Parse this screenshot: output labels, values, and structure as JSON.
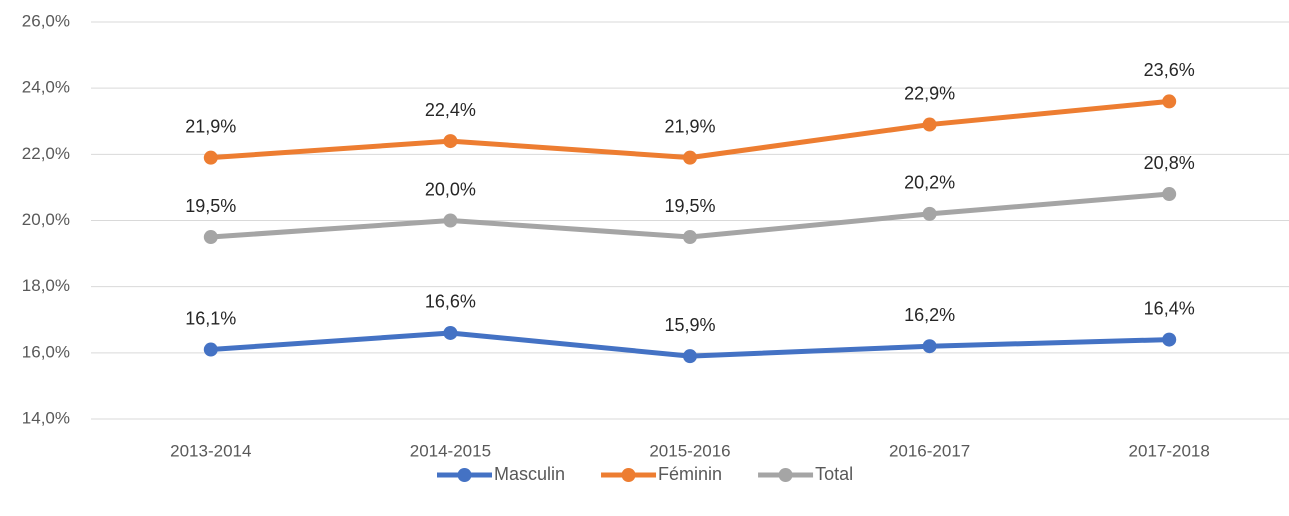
{
  "chart_data": {
    "type": "line",
    "categories": [
      "2013-2014",
      "2014-2015",
      "2015-2016",
      "2016-2017",
      "2017-2018"
    ],
    "series": [
      {
        "name": "Masculin",
        "color": "#4472c4",
        "values": [
          16.1,
          16.6,
          15.9,
          16.2,
          16.4
        ],
        "value_labels": [
          "16,1%",
          "16,6%",
          "15,9%",
          "16,2%",
          "16,4%"
        ]
      },
      {
        "name": "Féminin",
        "color": "#ed7d31",
        "values": [
          21.9,
          22.4,
          21.9,
          22.9,
          23.6
        ],
        "value_labels": [
          "21,9%",
          "22,4%",
          "21,9%",
          "22,9%",
          "23,6%"
        ]
      },
      {
        "name": "Total",
        "color": "#a5a5a5",
        "values": [
          19.5,
          20.0,
          19.5,
          20.2,
          20.8
        ],
        "value_labels": [
          "19,5%",
          "20,0%",
          "19,5%",
          "20,2%",
          "20,8%"
        ]
      }
    ],
    "ylim": [
      14,
      26
    ],
    "yticks": [
      {
        "value": 14,
        "label": "14,0%"
      },
      {
        "value": 16,
        "label": "16,0%"
      },
      {
        "value": 18,
        "label": "18,0%"
      },
      {
        "value": 20,
        "label": "20,0%"
      },
      {
        "value": 22,
        "label": "22,0%"
      },
      {
        "value": 24,
        "label": "24,0%"
      },
      {
        "value": 26,
        "label": "26,0%"
      }
    ],
    "grid": true,
    "legend": "bottom"
  }
}
